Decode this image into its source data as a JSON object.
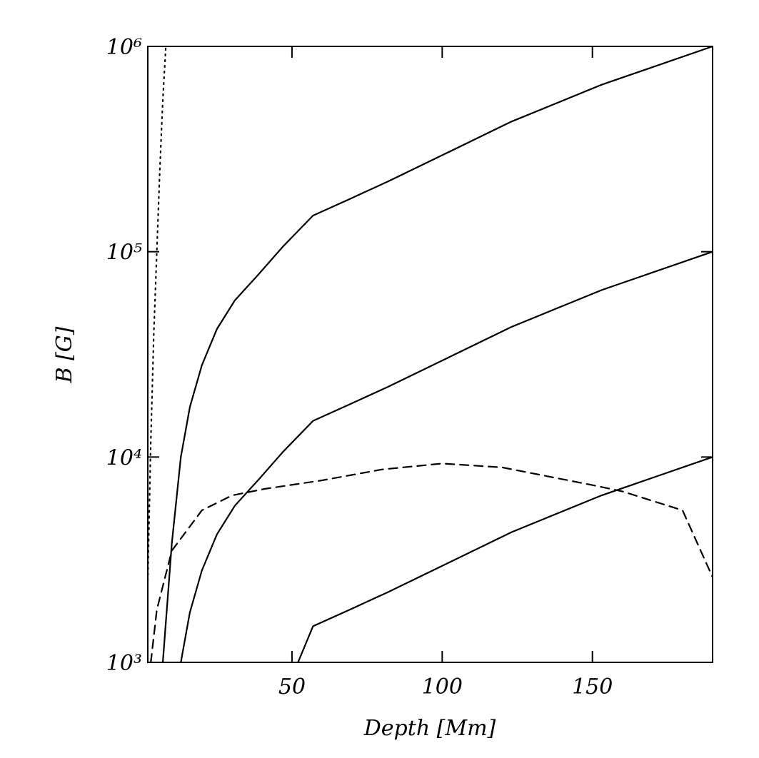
{
  "chart_data": {
    "type": "line",
    "xlabel": "Depth [Mm]",
    "ylabel": "B [G]",
    "xlim": [
      2,
      190
    ],
    "ylim": [
      1000,
      1000000
    ],
    "log_y": true,
    "xticks": [
      50,
      100,
      150
    ],
    "yticks": [
      {
        "value": 1000,
        "label": "10³"
      },
      {
        "value": 10000,
        "label": "10⁴"
      },
      {
        "value": 100000,
        "label": "10⁵"
      },
      {
        "value": 1000000,
        "label": "10⁶"
      }
    ],
    "series": [
      {
        "color": "#000000",
        "dash": "solid",
        "x": [
          7,
          10,
          13,
          16,
          20,
          25,
          31,
          39,
          47,
          57,
          69,
          82,
          101,
          123,
          153,
          190
        ],
        "values": [
          1000,
          3800,
          10000,
          17500,
          28000,
          42000,
          58000,
          78000,
          106000,
          150000,
          180000,
          220000,
          300000,
          430000,
          650000,
          1000000
        ]
      },
      {
        "color": "#000000",
        "dash": "solid",
        "x": [
          13,
          16,
          20,
          25,
          31,
          39,
          47,
          57,
          69,
          82,
          101,
          123,
          153,
          190
        ],
        "values": [
          1000,
          1750,
          2800,
          4200,
          5800,
          7800,
          10600,
          15000,
          18000,
          22000,
          30000,
          43000,
          65000,
          100000
        ]
      },
      {
        "color": "#000000",
        "dash": "solid",
        "x": [
          52,
          57,
          69,
          82,
          101,
          123,
          153,
          190
        ],
        "values": [
          1000,
          1500,
          1800,
          2200,
          3000,
          4300,
          6500,
          10000
        ]
      },
      {
        "color": "#000000",
        "dash": "dashed",
        "x": [
          3,
          5,
          10,
          20,
          30,
          41,
          60,
          80,
          100,
          120,
          150,
          160,
          180,
          190
        ],
        "values": [
          1000,
          1800,
          3500,
          5500,
          6500,
          7000,
          7700,
          8700,
          9300,
          8900,
          7300,
          6800,
          5500,
          2600
        ]
      },
      {
        "color": "#000000",
        "dash": "dotted",
        "x": [
          2,
          3,
          4,
          5,
          6,
          7,
          8
        ],
        "values": [
          2500,
          12000,
          40000,
          100000,
          250000,
          550000,
          1000000
        ]
      }
    ]
  }
}
